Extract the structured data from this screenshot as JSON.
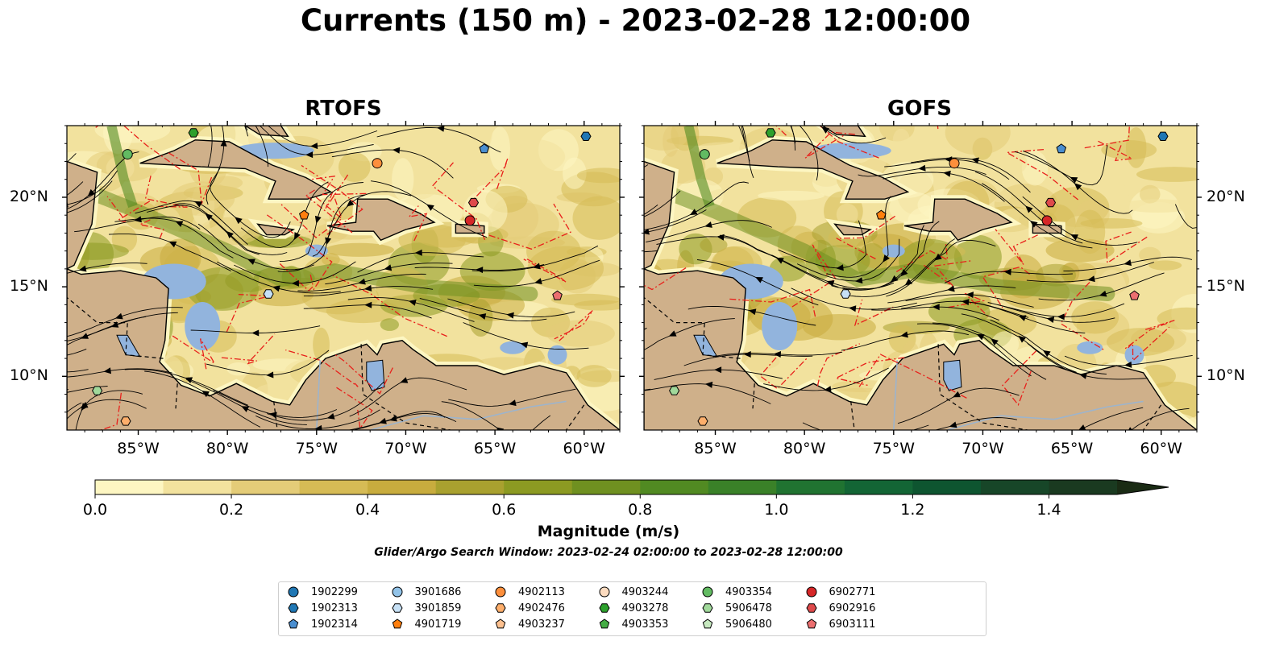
{
  "title": "Currents (150 m) - 2023-02-28 12:00:00",
  "panels": [
    {
      "title": "RTOFS"
    },
    {
      "title": "GOFS"
    }
  ],
  "x_tick_labels": [
    "85°W",
    "80°W",
    "75°W",
    "70°W",
    "65°W",
    "60°W"
  ],
  "y_tick_labels": [
    "20°N",
    "15°N",
    "10°N"
  ],
  "map_extent": {
    "lon": [
      -89,
      -58
    ],
    "lat": [
      7,
      24
    ]
  },
  "colorbar": {
    "label": "Magnitude (m/s)",
    "ticks": [
      "0.0",
      "0.2",
      "0.4",
      "0.6",
      "0.8",
      "1.0",
      "1.2",
      "1.4"
    ],
    "range": [
      0,
      1.5
    ],
    "extend": "max",
    "colors": [
      "#fdf6c2",
      "#f2e29e",
      "#e4cc78",
      "#d6bb55",
      "#c8ac3e",
      "#a9a12f",
      "#8c9a22",
      "#6f9020",
      "#518a22",
      "#3a8128",
      "#207331",
      "#136535",
      "#0e5530",
      "#174628",
      "#1a3a20",
      "#1a2b14"
    ]
  },
  "search_window": "Glider/Argo Search Window: 2023-02-24 02:00:00 to 2023-02-28 12:00:00",
  "colors": {
    "ocean": "#92b4dd",
    "land": "#cfb08a",
    "eez_line": "#e8201b"
  },
  "legend": [
    {
      "id": "1902299",
      "marker": "circle",
      "color": "#1f77b4"
    },
    {
      "id": "1902313",
      "marker": "hexagon",
      "color": "#1f77b4"
    },
    {
      "id": "1902314",
      "marker": "pentagon",
      "color": "#4a8ed0"
    },
    {
      "id": "3901686",
      "marker": "circle",
      "color": "#92c3e8"
    },
    {
      "id": "3901859",
      "marker": "hexagon",
      "color": "#c6e0f5"
    },
    {
      "id": "4901719",
      "marker": "pentagon",
      "color": "#ff7f0e"
    },
    {
      "id": "4902113",
      "marker": "circle",
      "color": "#fd8f3c"
    },
    {
      "id": "4902476",
      "marker": "hexagon",
      "color": "#fdae6b"
    },
    {
      "id": "4903237",
      "marker": "pentagon",
      "color": "#fdc08f"
    },
    {
      "id": "4903244",
      "marker": "circle",
      "color": "#fddcc0"
    },
    {
      "id": "4903278",
      "marker": "hexagon",
      "color": "#2ca02c"
    },
    {
      "id": "4903353",
      "marker": "pentagon",
      "color": "#45ad45"
    },
    {
      "id": "4903354",
      "marker": "circle",
      "color": "#62bb62"
    },
    {
      "id": "5906478",
      "marker": "hexagon",
      "color": "#a1d99b"
    },
    {
      "id": "5906480",
      "marker": "pentagon",
      "color": "#c7e9c0"
    },
    {
      "id": "6902771",
      "marker": "circle",
      "color": "#d62728"
    },
    {
      "id": "6902916",
      "marker": "hexagon",
      "color": "#de4a4b"
    },
    {
      "id": "6903111",
      "marker": "pentagon",
      "color": "#ec6f70"
    }
  ],
  "floats": [
    {
      "id": "4903278",
      "lon": -81.9,
      "lat": 23.6
    },
    {
      "id": "4903354",
      "lon": -85.6,
      "lat": 22.4
    },
    {
      "id": "4902113",
      "lon": -71.6,
      "lat": 21.9
    },
    {
      "id": "1902314",
      "lon": -65.6,
      "lat": 22.7
    },
    {
      "id": "1902313",
      "lon": -59.9,
      "lat": 23.4
    },
    {
      "id": "4901719",
      "lon": -75.7,
      "lat": 19.0
    },
    {
      "id": "6902916",
      "lon": -66.2,
      "lat": 19.7
    },
    {
      "id": "6902771",
      "lon": -66.4,
      "lat": 18.7
    },
    {
      "id": "3901859",
      "lon": -77.7,
      "lat": 14.6
    },
    {
      "id": "6903111",
      "lon": -61.5,
      "lat": 14.5
    },
    {
      "id": "5906478",
      "lon": -87.3,
      "lat": 9.2
    },
    {
      "id": "4902476",
      "lon": -85.7,
      "lat": 7.5
    }
  ]
}
